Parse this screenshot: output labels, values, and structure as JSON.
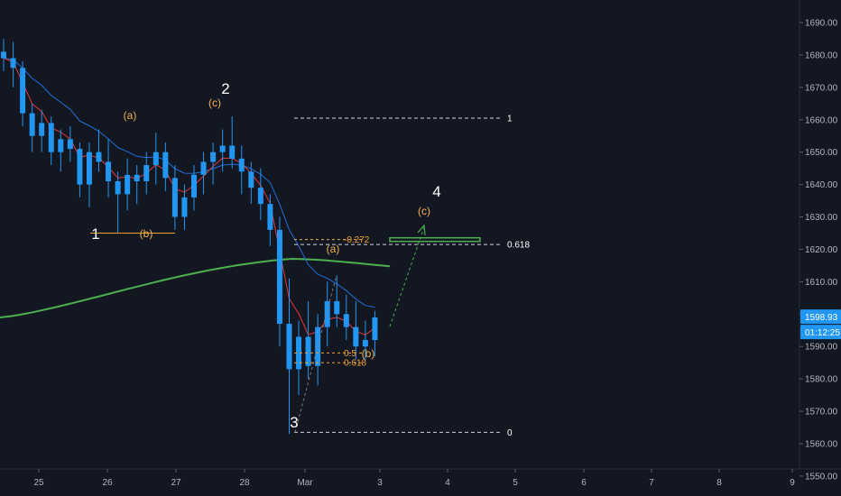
{
  "chart_data": {
    "type": "candlestick",
    "x_ticks": [
      "25",
      "26",
      "27",
      "28",
      "Mar",
      "3",
      "4",
      "5",
      "6",
      "7",
      "8",
      "9"
    ],
    "y_ticks": [
      "1690.00",
      "1680.00",
      "1670.00",
      "1660.00",
      "1650.00",
      "1640.00",
      "1630.00",
      "1620.00",
      "1610.00",
      "1600.00",
      "1590.00",
      "1580.00",
      "1570.00",
      "1560.00",
      "1550.00"
    ],
    "ylim": [
      1544,
      1697
    ],
    "last_price": "1598.93",
    "countdown": "01:12:25",
    "colors": {
      "background": "#131722",
      "candle_up": "#2196f3",
      "candle_down": "#2196f3",
      "ema_fast": "#e53935",
      "ema_mid": "#1e6fd9",
      "ma_slow": "#4caf50",
      "badge": "#2196f3",
      "wave_white": "#ffffff",
      "wave_orange": "#f0b04c",
      "target_box": "#4caf50"
    },
    "candles": [
      [
        0,
        1681,
        1685,
        1675,
        1679
      ],
      [
        1,
        1679,
        1684,
        1670,
        1676
      ],
      [
        2,
        1676,
        1678,
        1658,
        1662
      ],
      [
        3,
        1662,
        1665,
        1650,
        1655
      ],
      [
        4,
        1655,
        1663,
        1650,
        1659
      ],
      [
        5,
        1659,
        1661,
        1646,
        1650
      ],
      [
        6,
        1650,
        1657,
        1644,
        1654
      ],
      [
        7,
        1654,
        1658,
        1647,
        1651
      ],
      [
        8,
        1651,
        1653,
        1636,
        1640
      ],
      [
        9,
        1640,
        1653,
        1633,
        1650
      ],
      [
        10,
        1650,
        1657,
        1644,
        1647
      ],
      [
        11,
        1647,
        1654,
        1636,
        1641
      ],
      [
        12,
        1641,
        1644,
        1625,
        1637
      ],
      [
        13,
        1637,
        1648,
        1632,
        1643
      ],
      [
        14,
        1643,
        1646,
        1634,
        1641
      ],
      [
        15,
        1641,
        1650,
        1637,
        1646
      ],
      [
        16,
        1646,
        1656,
        1640,
        1650
      ],
      [
        17,
        1650,
        1653,
        1638,
        1642
      ],
      [
        18,
        1642,
        1646,
        1626,
        1630
      ],
      [
        19,
        1630,
        1640,
        1626,
        1636
      ],
      [
        20,
        1636,
        1646,
        1632,
        1643
      ],
      [
        21,
        1643,
        1650,
        1637,
        1647
      ],
      [
        22,
        1647,
        1653,
        1640,
        1650
      ],
      [
        23,
        1650,
        1657,
        1644,
        1652
      ],
      [
        24,
        1652,
        1661,
        1645,
        1648
      ],
      [
        25,
        1648,
        1652,
        1637,
        1644
      ],
      [
        26,
        1644,
        1647,
        1634,
        1639
      ],
      [
        27,
        1639,
        1645,
        1629,
        1634
      ],
      [
        28,
        1634,
        1637,
        1621,
        1626
      ],
      [
        29,
        1626,
        1630,
        1590,
        1597
      ],
      [
        30,
        1597,
        1611,
        1563,
        1583
      ],
      [
        31,
        1583,
        1598,
        1575,
        1593
      ],
      [
        32,
        1593,
        1604,
        1580,
        1584
      ],
      [
        33,
        1584,
        1600,
        1578,
        1596
      ],
      [
        34,
        1596,
        1610,
        1590,
        1604
      ],
      [
        35,
        1604,
        1612,
        1596,
        1600
      ],
      [
        36,
        1600,
        1606,
        1592,
        1596
      ],
      [
        37,
        1596,
        1604,
        1586,
        1590
      ],
      [
        38,
        1590,
        1598,
        1586,
        1592
      ],
      [
        39,
        1592,
        1601,
        1587,
        1599
      ]
    ],
    "fib_levels": [
      {
        "label": "1",
        "value": 1660.5
      },
      {
        "label": "0.618",
        "value": 1621.5
      },
      {
        "label": "0",
        "value": 1563.5
      }
    ],
    "fib_inner": [
      {
        "label": "-0.272",
        "value": 1623
      },
      {
        "label": "0.5",
        "value": 1588
      },
      {
        "label": "0.618",
        "value": 1585
      }
    ],
    "wave_labels": [
      {
        "label": "1",
        "style": "white"
      },
      {
        "label": "2",
        "style": "white"
      },
      {
        "label": "3",
        "style": "white"
      },
      {
        "label": "4",
        "style": "white"
      },
      {
        "label": "(a)",
        "style": "orange"
      },
      {
        "label": "(b)",
        "style": "orange"
      },
      {
        "label": "(c)",
        "style": "orange"
      },
      {
        "label": "(a)",
        "style": "orange"
      },
      {
        "label": "(b)",
        "style": "orange"
      },
      {
        "label": "(c)",
        "style": "orange"
      }
    ]
  }
}
